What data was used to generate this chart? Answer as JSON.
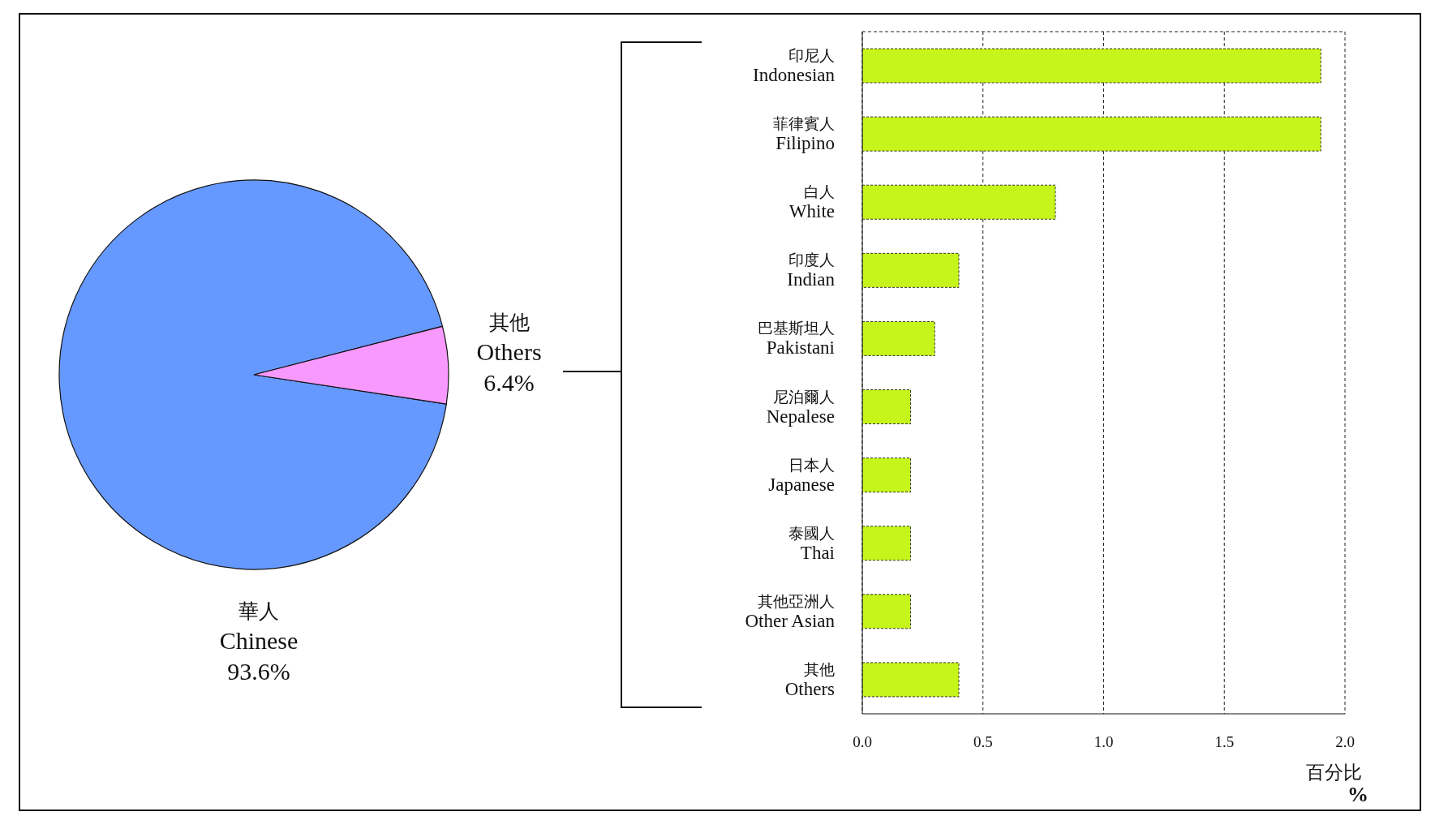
{
  "chart_data": [
    {
      "type": "pie",
      "categories": [
        "華人\nChinese",
        "其他\nOthers"
      ],
      "values": [
        93.6,
        6.4
      ],
      "colors": [
        "#6699ff",
        "#f799ff"
      ],
      "value_labels": [
        "93.6%",
        "6.4%"
      ]
    },
    {
      "type": "bar",
      "orientation": "horizontal",
      "categories": [
        "印尼人\nIndonesian",
        "菲律賓人\nFilipino",
        "白人\nWhite",
        "印度人\nIndian",
        "巴基斯坦人\nPakistani",
        "尼泊爾人\nNepalese",
        "日本人\nJapanese",
        "泰國人\nThai",
        "其他亞洲人\nOther Asian",
        "其他\nOthers"
      ],
      "values": [
        1.9,
        1.9,
        0.8,
        0.4,
        0.3,
        0.2,
        0.2,
        0.2,
        0.2,
        0.4
      ],
      "color": "#c6f51c",
      "xlim": [
        0,
        2
      ],
      "xticks": [
        {
          "value": 0,
          "label": "0.0"
        },
        {
          "value": 0.5,
          "label": "0.5"
        },
        {
          "value": 1,
          "label": "1.0"
        },
        {
          "value": 1.5,
          "label": "1.5"
        },
        {
          "value": 2,
          "label": "2.0"
        }
      ],
      "xlabel": "百分比\n%",
      "grid": "x"
    }
  ]
}
